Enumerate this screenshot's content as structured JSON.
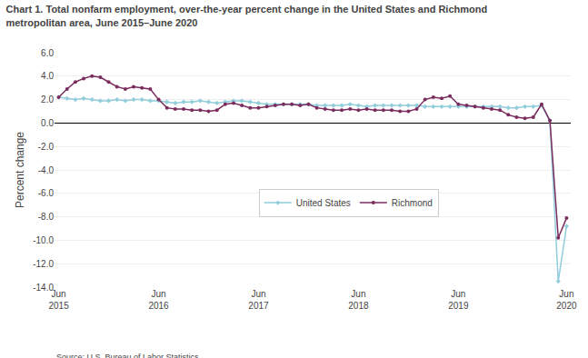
{
  "chart_data": {
    "type": "line",
    "title": "Chart 1. Total nonfarm employment, over-the-year percent change in the United States and Richmond\nmetropolitan area, June 2015–June 2020",
    "y_label": "Percent change",
    "source": "Source: U.S. Bureau of Labor Statistics.",
    "categories": [
      "Jun\n2015",
      null,
      null,
      null,
      null,
      null,
      null,
      null,
      null,
      null,
      null,
      null,
      "Jun\n2016",
      null,
      null,
      null,
      null,
      null,
      null,
      null,
      null,
      null,
      null,
      null,
      "Jun\n2017",
      null,
      null,
      null,
      null,
      null,
      null,
      null,
      null,
      null,
      null,
      null,
      "Jun\n2018",
      null,
      null,
      null,
      null,
      null,
      null,
      null,
      null,
      null,
      null,
      null,
      "Jun\n2019",
      null,
      null,
      null,
      null,
      null,
      null,
      null,
      null,
      null,
      null,
      null,
      null,
      "Jun\n2020"
    ],
    "series": [
      {
        "name": "United States",
        "color": "#92CDDC",
        "marker": "diamond",
        "values": [
          2.2,
          2.1,
          2.0,
          2.1,
          2.0,
          1.9,
          1.9,
          2.0,
          1.9,
          2.0,
          2.0,
          1.9,
          1.9,
          1.8,
          1.7,
          1.8,
          1.8,
          1.9,
          1.8,
          1.7,
          1.8,
          1.9,
          1.9,
          1.8,
          1.7,
          1.6,
          1.6,
          1.6,
          1.6,
          1.6,
          1.6,
          1.5,
          1.5,
          1.5,
          1.5,
          1.6,
          1.5,
          1.4,
          1.5,
          1.5,
          1.5,
          1.5,
          1.5,
          1.5,
          1.4,
          1.4,
          1.4,
          1.4,
          1.4,
          1.4,
          1.4,
          1.4,
          1.4,
          1.4,
          1.3,
          1.3,
          1.4,
          1.4,
          1.5,
          0.2,
          -13.5,
          -8.8
        ]
      },
      {
        "name": "Richmond",
        "color": "#7B2C5E",
        "marker": "circle",
        "values": [
          2.2,
          2.9,
          3.5,
          3.8,
          4.0,
          3.9,
          3.5,
          3.1,
          2.9,
          3.1,
          3.0,
          2.9,
          2.0,
          1.3,
          1.2,
          1.2,
          1.1,
          1.1,
          1.0,
          1.1,
          1.6,
          1.7,
          1.5,
          1.3,
          1.3,
          1.4,
          1.5,
          1.6,
          1.6,
          1.5,
          1.6,
          1.3,
          1.2,
          1.1,
          1.1,
          1.2,
          1.1,
          1.2,
          1.1,
          1.1,
          1.1,
          1.0,
          1.0,
          1.2,
          2.0,
          2.2,
          2.1,
          2.3,
          1.6,
          1.5,
          1.4,
          1.3,
          1.2,
          1.1,
          0.7,
          0.5,
          0.4,
          0.5,
          1.6,
          0.2,
          -9.8,
          -8.1
        ]
      }
    ],
    "ylim": [
      -14.0,
      6.0
    ],
    "yticks": [
      {
        "value": -14,
        "label": "-14.0"
      },
      {
        "value": -12,
        "label": "-12.0"
      },
      {
        "value": -10,
        "label": "-10.0"
      },
      {
        "value": -8,
        "label": "-8.0"
      },
      {
        "value": -6,
        "label": "-6.0"
      },
      {
        "value": -4,
        "label": "-4.0"
      },
      {
        "value": -2,
        "label": "-2.0"
      },
      {
        "value": 0,
        "label": "0.0"
      },
      {
        "value": 2,
        "label": "2.0"
      },
      {
        "value": 4,
        "label": "4.0"
      },
      {
        "value": 6,
        "label": "6.0"
      }
    ],
    "grid": true,
    "legend": "lower center"
  }
}
